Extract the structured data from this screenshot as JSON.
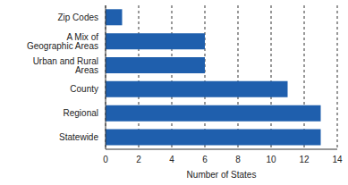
{
  "chart_data": {
    "type": "bar",
    "orientation": "horizontal",
    "x_label": "Number of States",
    "categories": [
      "Zip Codes",
      "A Mix of Geographic Areas",
      "Urban and Rural Areas",
      "County",
      "Regional",
      "Statewide"
    ],
    "values": [
      1,
      6,
      6,
      11,
      13,
      13
    ],
    "color": "#1f5fad",
    "xlim": [
      0,
      14
    ],
    "xticks": [
      0,
      2,
      4,
      6,
      8,
      10,
      12,
      14
    ],
    "grid": true
  }
}
